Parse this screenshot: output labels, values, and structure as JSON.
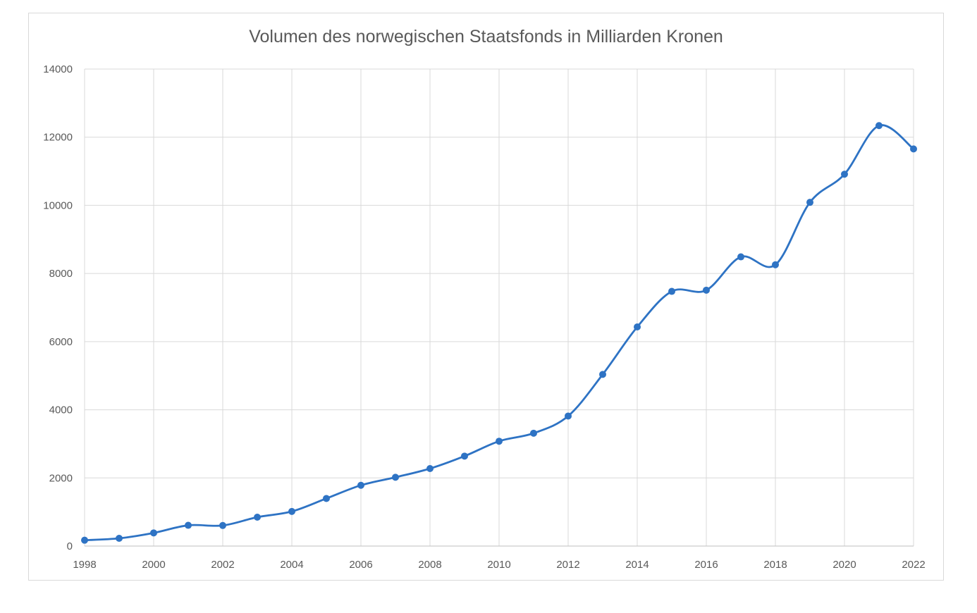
{
  "chart_data": {
    "type": "line",
    "title": "Volumen des norwegischen Staatsfonds in Milliarden Kronen",
    "xlabel": "",
    "ylabel": "",
    "x": [
      1998,
      1999,
      2000,
      2001,
      2002,
      2003,
      2004,
      2005,
      2006,
      2007,
      2008,
      2009,
      2010,
      2011,
      2012,
      2013,
      2014,
      2015,
      2016,
      2017,
      2018,
      2019,
      2020,
      2021,
      2022
    ],
    "values": [
      172,
      227,
      386,
      609,
      604,
      848,
      1016,
      1397,
      1784,
      2019,
      2275,
      2640,
      3077,
      3312,
      3816,
      5038,
      6431,
      7475,
      7510,
      8488,
      8256,
      10088,
      10914,
      12340,
      11656
    ],
    "xlim": [
      1998,
      2022
    ],
    "ylim": [
      0,
      14000
    ],
    "x_ticks": [
      "1998",
      "2000",
      "2002",
      "2004",
      "2006",
      "2008",
      "2010",
      "2012",
      "2014",
      "2016",
      "2018",
      "2020",
      "2022"
    ],
    "y_ticks": [
      "0",
      "2000",
      "4000",
      "6000",
      "8000",
      "10000",
      "12000",
      "14000"
    ],
    "grid": true,
    "smooth": true,
    "markers": true,
    "legend": "none",
    "color": "#2e73c4"
  }
}
